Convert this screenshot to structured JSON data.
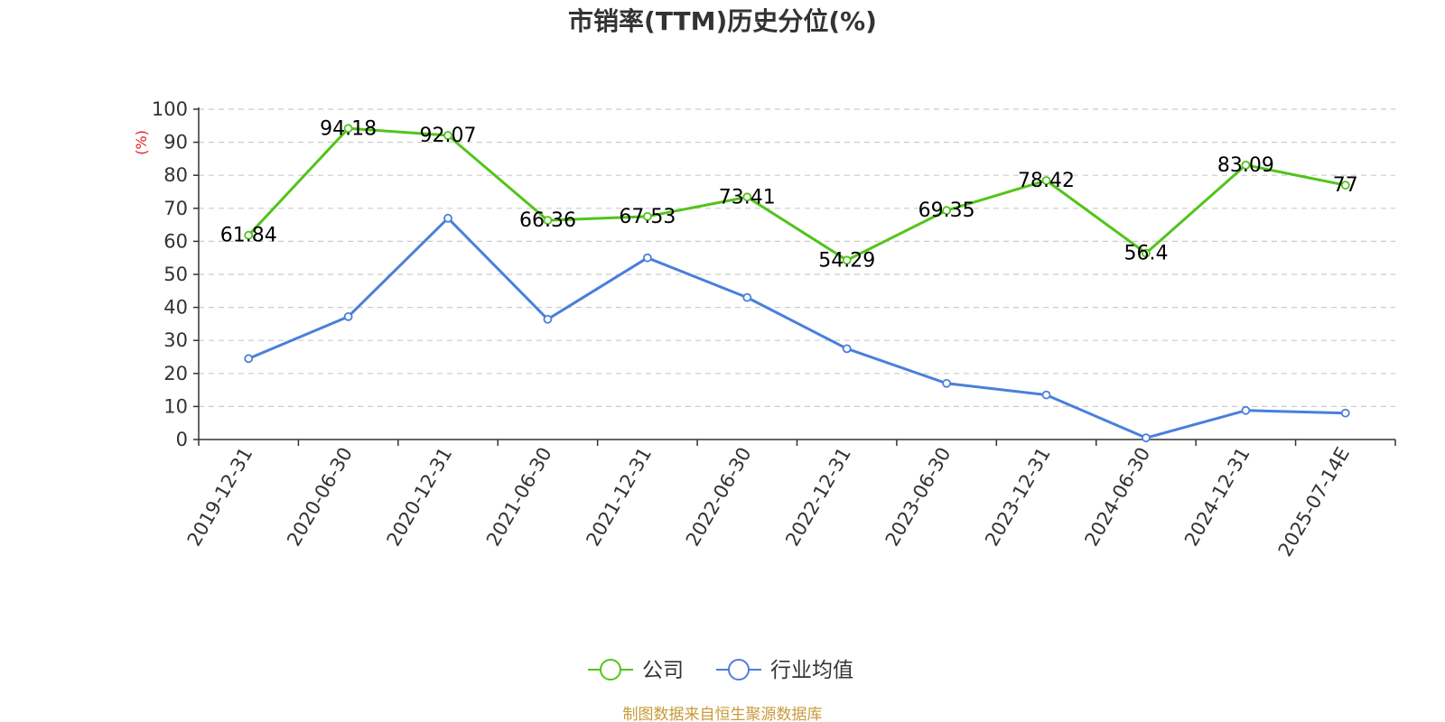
{
  "chart_data": {
    "type": "line",
    "title": "市销率(TTM)历史分位(%)",
    "ylabel": "(%)",
    "xlabel": "",
    "ylim": [
      0,
      100
    ],
    "yticks": [
      0,
      10,
      20,
      30,
      40,
      50,
      60,
      70,
      80,
      90,
      100
    ],
    "grid": true,
    "legend_position": "bottom-center",
    "categories": [
      "2019-12-31",
      "2020-06-30",
      "2020-12-31",
      "2021-06-30",
      "2021-12-31",
      "2022-06-30",
      "2022-12-31",
      "2023-06-30",
      "2023-12-31",
      "2024-06-30",
      "2024-12-31",
      "2025-07-14E"
    ],
    "series": [
      {
        "name": "公司",
        "color": "#52c41a",
        "show_labels": true,
        "values": [
          61.84,
          94.18,
          92.07,
          66.36,
          67.53,
          73.41,
          54.29,
          69.35,
          78.42,
          56.4,
          83.09,
          77
        ]
      },
      {
        "name": "行业均值",
        "color": "#4a7fdc",
        "show_labels": false,
        "values": [
          24.5,
          37.2,
          67.0,
          36.4,
          55.0,
          43.0,
          27.5,
          17.0,
          13.5,
          0.5,
          8.8,
          8.0
        ]
      }
    ],
    "colors": {
      "ylabel": "#e02020",
      "source": "#c89a3a",
      "grid": "#cccccc",
      "axis": "#333333"
    }
  },
  "source_text": "制图数据来自恒生聚源数据库"
}
